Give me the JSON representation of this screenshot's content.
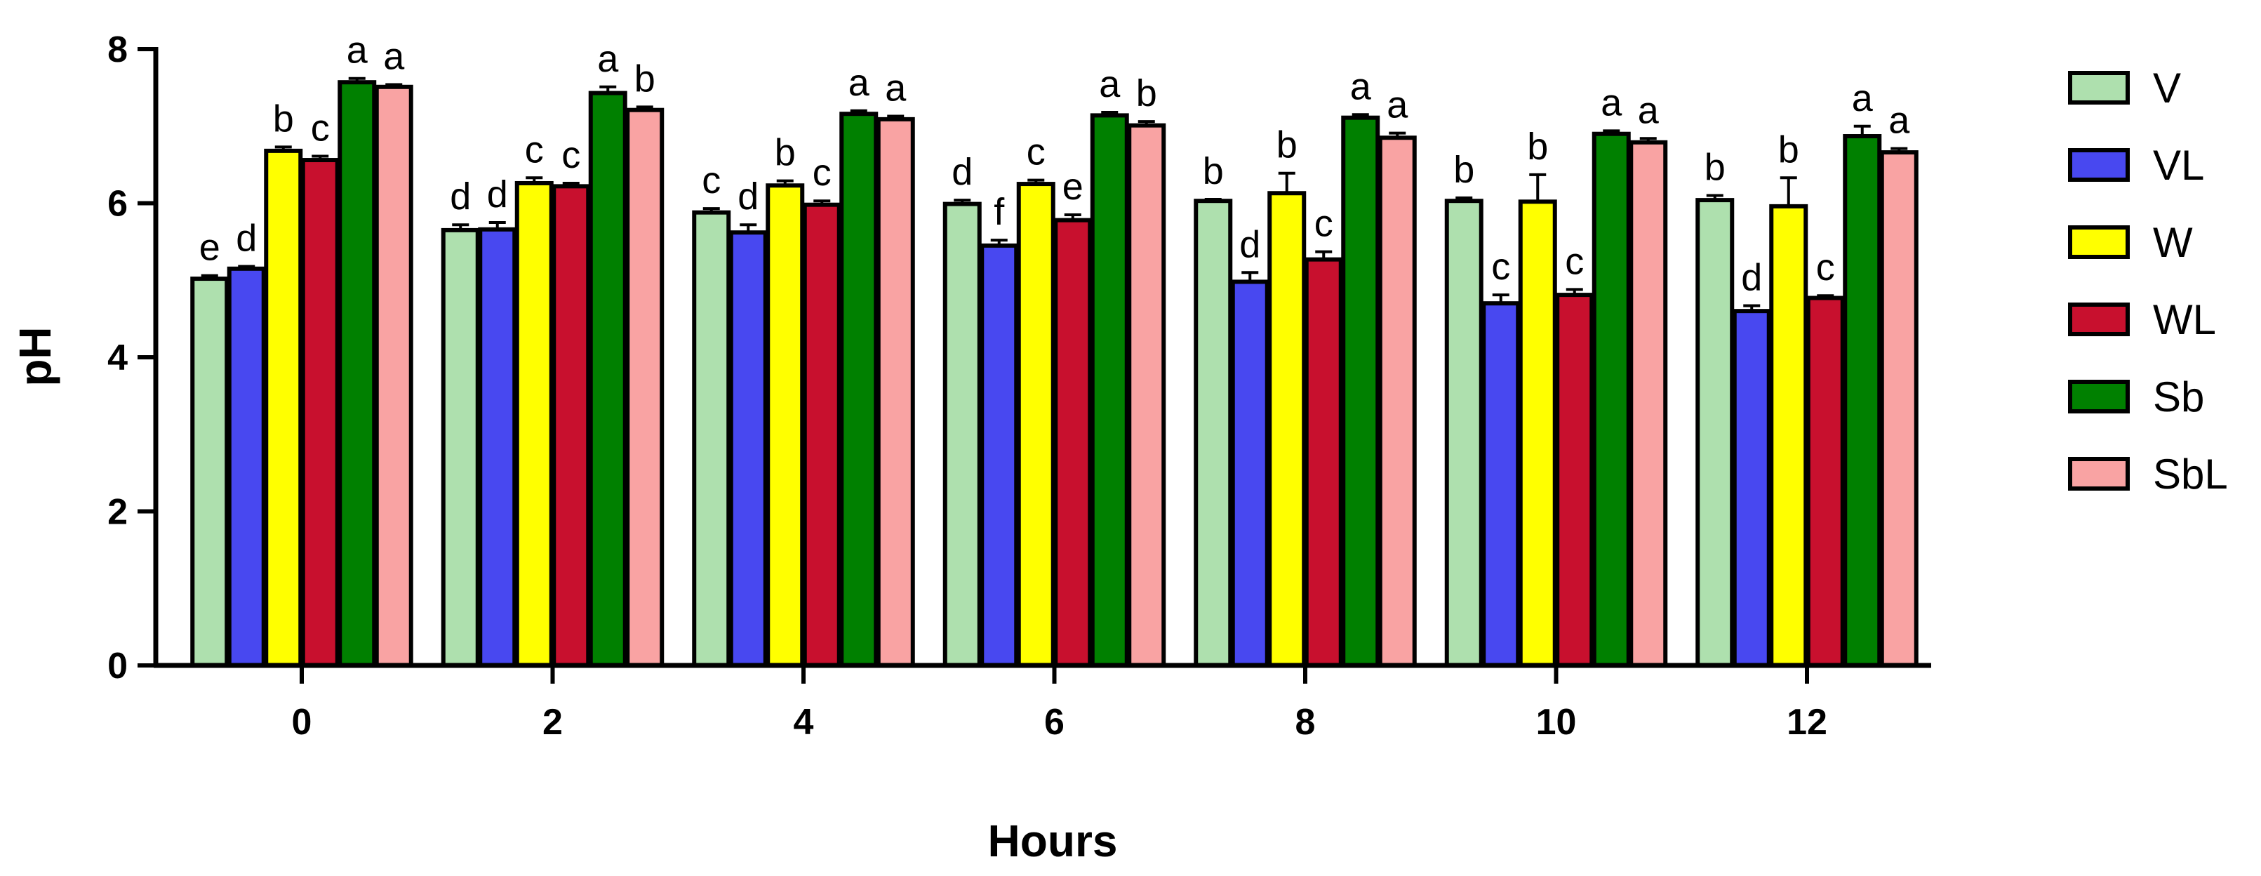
{
  "chart_data": {
    "type": "bar",
    "title": "",
    "xlabel": "Hours",
    "ylabel": "pH",
    "ylim": [
      0,
      8
    ],
    "yticks": [
      0,
      2,
      4,
      6,
      8
    ],
    "grid": false,
    "legend_position": "right",
    "categories": [
      "0",
      "2",
      "4",
      "6",
      "8",
      "10",
      "12"
    ],
    "series": [
      {
        "name": "V",
        "color": "#aee0ae",
        "values": [
          5.02,
          5.65,
          5.88,
          5.99,
          6.03,
          6.03,
          6.04
        ],
        "errors": [
          0.04,
          0.07,
          0.05,
          0.05,
          0.02,
          0.04,
          0.06
        ],
        "letters": [
          "e",
          "d",
          "c",
          "d",
          "b",
          "b",
          "b"
        ]
      },
      {
        "name": "VL",
        "color": "#4848f0",
        "values": [
          5.15,
          5.66,
          5.62,
          5.45,
          4.98,
          4.7,
          4.6
        ],
        "errors": [
          0.03,
          0.09,
          0.1,
          0.07,
          0.12,
          0.11,
          0.07
        ],
        "letters": [
          "d",
          "d",
          "d",
          "f",
          "d",
          "c",
          "d"
        ]
      },
      {
        "name": "W",
        "color": "#ffff00",
        "values": [
          6.68,
          6.26,
          6.23,
          6.25,
          6.13,
          6.02,
          5.96
        ],
        "errors": [
          0.05,
          0.07,
          0.06,
          0.05,
          0.26,
          0.35,
          0.37
        ],
        "letters": [
          "b",
          "c",
          "b",
          "c",
          "b",
          "b",
          "b"
        ]
      },
      {
        "name": "WL",
        "color": "#c8102e",
        "values": [
          6.56,
          6.22,
          5.98,
          5.78,
          5.27,
          4.81,
          4.77
        ],
        "errors": [
          0.05,
          0.04,
          0.05,
          0.07,
          0.1,
          0.07,
          0.03
        ],
        "letters": [
          "c",
          "c",
          "c",
          "e",
          "c",
          "c",
          "c"
        ]
      },
      {
        "name": "Sb",
        "color": "#008000",
        "values": [
          7.57,
          7.43,
          7.16,
          7.14,
          7.11,
          6.9,
          6.87
        ],
        "errors": [
          0.05,
          0.08,
          0.04,
          0.04,
          0.04,
          0.04,
          0.13
        ],
        "letters": [
          "a",
          "a",
          "a",
          "a",
          "a",
          "a",
          "a"
        ]
      },
      {
        "name": "SbL",
        "color": "#f9a3a3",
        "values": [
          7.51,
          7.21,
          7.09,
          7.01,
          6.85,
          6.79,
          6.66
        ],
        "errors": [
          0.03,
          0.04,
          0.04,
          0.05,
          0.06,
          0.05,
          0.05
        ],
        "letters": [
          "a",
          "b",
          "a",
          "b",
          "a",
          "a",
          "a"
        ]
      }
    ]
  }
}
